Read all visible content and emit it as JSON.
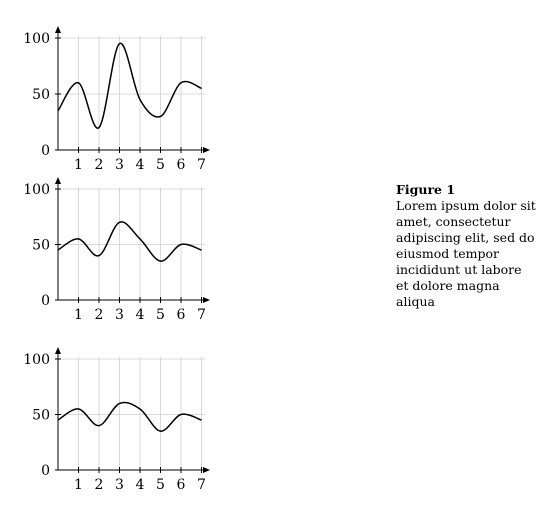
{
  "caption": {
    "title": "Figure 1",
    "text": "Lorem ipsum dolor sit amet, consectetur adipiscing elit, sed do eiusmod tempor incididunt ut labore et dolore magna aliqua"
  },
  "chart_data": [
    {
      "type": "line",
      "x": [
        0,
        1,
        2,
        3,
        4,
        5,
        6,
        7
      ],
      "series": [
        {
          "values": [
            35,
            60,
            20,
            95,
            45,
            30,
            60,
            55
          ]
        }
      ],
      "xticks": [
        "1",
        "2",
        "3",
        "4",
        "5",
        "6",
        "7"
      ],
      "yticks": [
        "0",
        "50",
        "100"
      ],
      "xlim": [
        0,
        7.5
      ],
      "ylim": [
        0,
        100
      ],
      "grid": "vertical"
    },
    {
      "type": "line",
      "x": [
        0,
        1,
        2,
        3,
        4,
        5,
        6,
        7
      ],
      "series": [
        {
          "values": [
            45,
            55,
            40,
            70,
            55,
            35,
            50,
            45
          ]
        }
      ],
      "xticks": [
        "1",
        "2",
        "3",
        "4",
        "5",
        "6",
        "7"
      ],
      "yticks": [
        "0",
        "50",
        "100"
      ],
      "xlim": [
        0,
        7.5
      ],
      "ylim": [
        0,
        100
      ],
      "grid": "vertical"
    },
    {
      "type": "line",
      "x": [
        0,
        1,
        2,
        3,
        4,
        5,
        6,
        7
      ],
      "series": [
        {
          "values": [
            45,
            55,
            40,
            60,
            55,
            35,
            50,
            45
          ]
        }
      ],
      "xticks": [
        "1",
        "2",
        "3",
        "4",
        "5",
        "6",
        "7"
      ],
      "yticks": [
        "0",
        "50",
        "100"
      ],
      "xlim": [
        0,
        7.5
      ],
      "ylim": [
        0,
        100
      ],
      "grid": "vertical"
    }
  ]
}
